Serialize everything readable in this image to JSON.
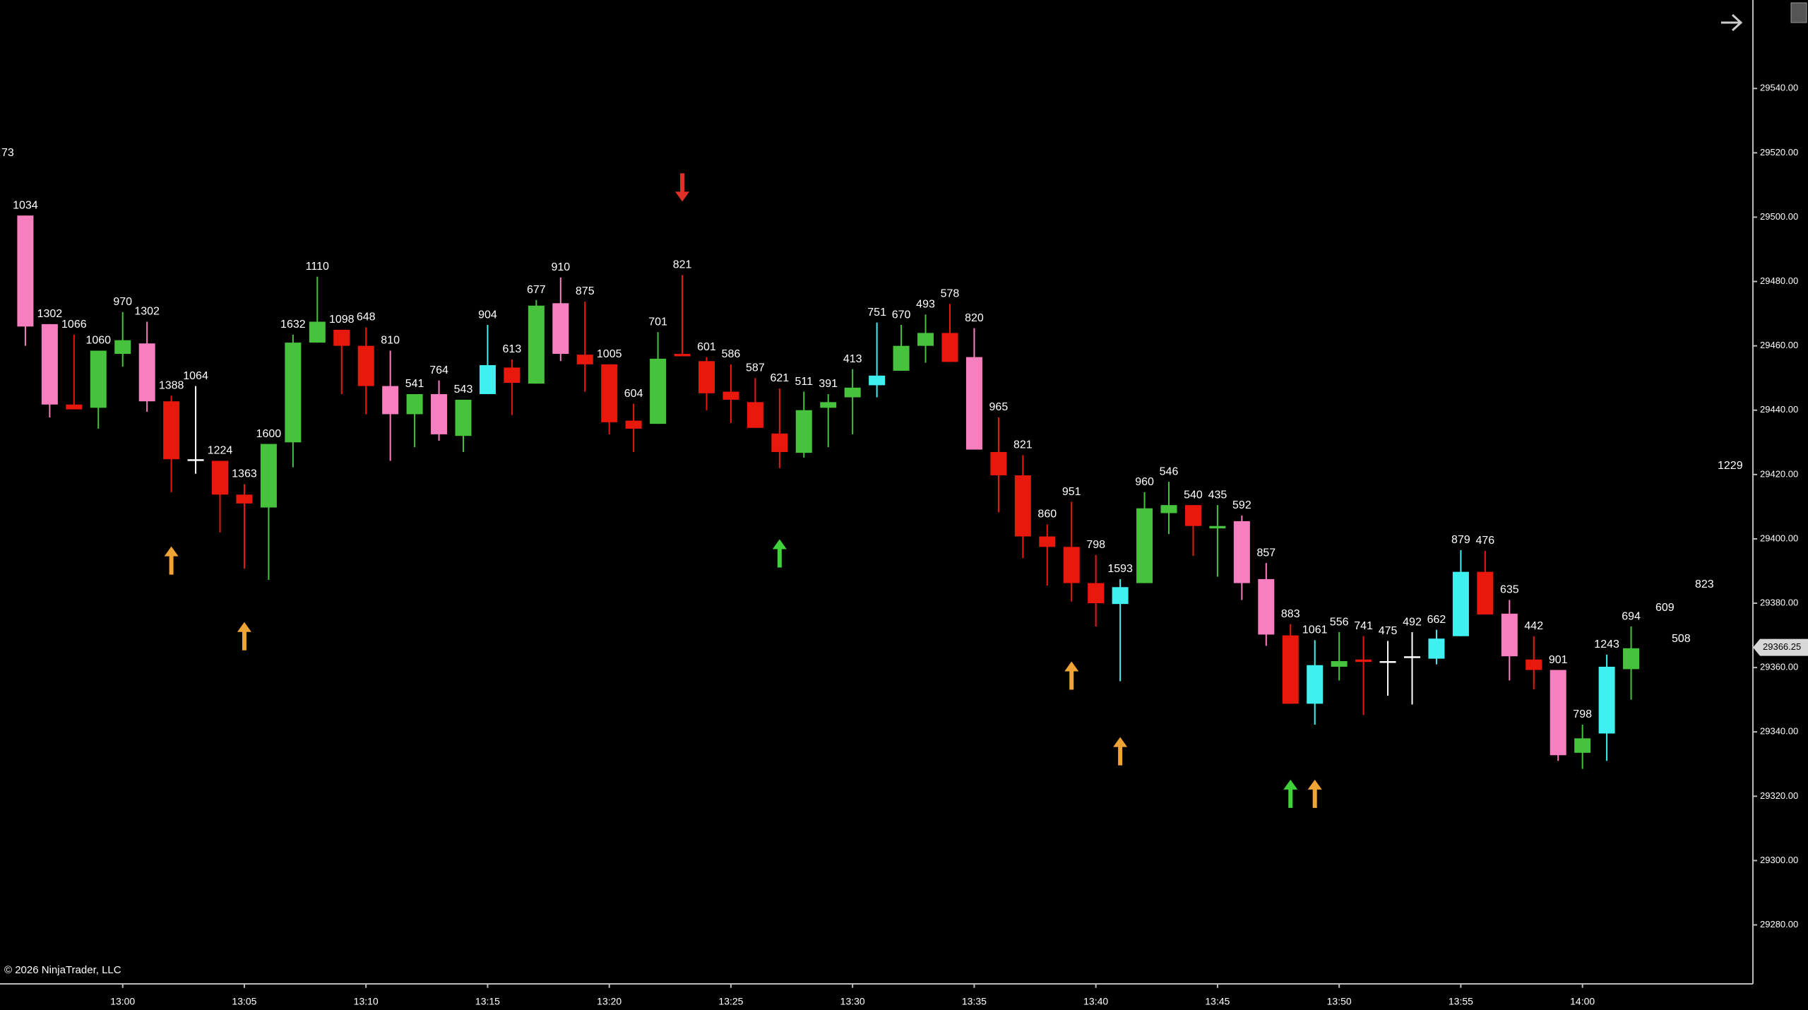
{
  "chart_data": {
    "type": "candlestick",
    "x": [
      "12:56",
      "12:57",
      "12:58",
      "12:59",
      "13:00",
      "13:01",
      "13:02",
      "13:03",
      "13:04",
      "13:05",
      "13:06",
      "13:07",
      "13:08",
      "13:09",
      "13:10",
      "13:11",
      "13:12",
      "13:13",
      "13:14",
      "13:15",
      "13:16",
      "13:17",
      "13:18",
      "13:19",
      "13:20",
      "13:21",
      "13:22",
      "13:23",
      "13:24",
      "13:25",
      "13:26",
      "13:27",
      "13:28",
      "13:29",
      "13:30",
      "13:31",
      "13:32",
      "13:33",
      "13:34",
      "13:35",
      "13:36",
      "13:37",
      "13:38",
      "13:39",
      "13:40",
      "13:41",
      "13:42",
      "13:43",
      "13:44",
      "13:45",
      "13:46",
      "13:47",
      "13:48",
      "13:49",
      "13:50",
      "13:51",
      "13:52",
      "13:53",
      "13:54",
      "13:55",
      "13:56",
      "13:57",
      "13:58",
      "13:59",
      "14:00",
      "14:01",
      "14:02"
    ],
    "open": [
      29500.5,
      29466.75,
      29441.75,
      29440.75,
      29457.5,
      29460.75,
      29442.75,
      29424.75,
      29424.25,
      29413.75,
      29409.75,
      29430,
      29461,
      29465,
      29460,
      29447.5,
      29438.75,
      29445,
      29432,
      29445,
      29453.25,
      29448.25,
      29473.25,
      29457.25,
      29454.25,
      29436.75,
      29435.75,
      29457.5,
      29455.25,
      29445.75,
      29442.5,
      29432.75,
      29426.75,
      29440.75,
      29444,
      29447.75,
      29452.25,
      29460,
      29464,
      29456.5,
      29427,
      29419.75,
      29400.75,
      29397.5,
      29386.25,
      29379.75,
      29386.25,
      29408,
      29410.5,
      29403.25,
      29405.5,
      29387.5,
      29370,
      29348.75,
      29360.25,
      29362.5,
      29362,
      29363.5,
      29362.75,
      29369.75,
      29389.75,
      29376.75,
      29362.5,
      29359.25,
      29333.5,
      29339.5,
      29359.5
    ],
    "high": [
      29500.5,
      29466.75,
      29463.5,
      29458.5,
      29470.5,
      29467.5,
      29444.5,
      29447.5,
      29424.25,
      29417,
      29429.5,
      29463.5,
      29481.5,
      29465,
      29465.75,
      29458.5,
      29445,
      29449.25,
      29443.25,
      29466.5,
      29455.75,
      29474.25,
      29481.25,
      29473.75,
      29454.25,
      29442,
      29464.25,
      29482,
      29456.5,
      29454.25,
      29450,
      29446.75,
      29445.75,
      29445,
      29452.75,
      29467.25,
      29466.5,
      29469.75,
      29473,
      29465.5,
      29437.75,
      29426,
      29404.5,
      29411.5,
      29395,
      29387.5,
      29414.5,
      29417.75,
      29410.5,
      29410.5,
      29407.25,
      29392.5,
      29373.5,
      29368.5,
      29371,
      29369.75,
      29368.25,
      29371,
      29371.75,
      29396.5,
      29396.25,
      29381,
      29369.75,
      29359.25,
      29342.25,
      29364,
      29372.75
    ],
    "low": [
      29460,
      29437.75,
      29440.25,
      29434.25,
      29453.5,
      29439.5,
      29414.5,
      29420.25,
      29402,
      29390.75,
      29387.25,
      29422.25,
      29461,
      29445,
      29438.75,
      29424.25,
      29428.5,
      29430.5,
      29427,
      29445,
      29438.5,
      29448.25,
      29455.25,
      29445.75,
      29432.5,
      29427,
      29435.75,
      29456.75,
      29440,
      29436,
      29434.5,
      29422,
      29425.25,
      29428.5,
      29432.5,
      29444,
      29452.25,
      29454.75,
      29455,
      29427.75,
      29408.25,
      29394,
      29385.5,
      29380.5,
      29372.75,
      29355.75,
      29386.25,
      29401.5,
      29394.75,
      29388.25,
      29381,
      29366.75,
      29348.75,
      29342.25,
      29356,
      29345.25,
      29351.25,
      29348.5,
      29361,
      29369.75,
      29376.5,
      29356,
      29353.25,
      29331,
      29328.5,
      29331,
      29350
    ],
    "close": [
      29466,
      29441.75,
      29440.25,
      29458.5,
      29461.75,
      29442.75,
      29424.75,
      29424.75,
      29413.75,
      29411,
      29429.5,
      29461,
      29467.5,
      29460,
      29447.5,
      29438.75,
      29445,
      29432.5,
      29443.25,
      29454,
      29448.5,
      29472.5,
      29457.5,
      29454.25,
      29436.25,
      29434.25,
      29456,
      29456.75,
      29445.25,
      29443.25,
      29434.5,
      29427,
      29440,
      29442.5,
      29447,
      29450.75,
      29460,
      29464,
      29455,
      29427.75,
      29419.75,
      29400.75,
      29397.5,
      29386.25,
      29380,
      29385,
      29409.5,
      29410.5,
      29404,
      29404,
      29386.25,
      29370.25,
      29348.75,
      29360.75,
      29362,
      29361.75,
      29362,
      29363.5,
      29369,
      29389.75,
      29376.5,
      29363.5,
      29359.25,
      29332.75,
      29338,
      29360.25,
      29366
    ],
    "volumes": [
      1034,
      1302,
      1066,
      1060,
      970,
      1302,
      1388,
      1064,
      1224,
      1363,
      1600,
      1632,
      1110,
      1098,
      648,
      810,
      541,
      764,
      543,
      904,
      613,
      677,
      910,
      875,
      1005,
      604,
      701,
      821,
      601,
      586,
      587,
      621,
      511,
      391,
      413,
      751,
      670,
      493,
      578,
      820,
      965,
      821,
      860,
      951,
      798,
      1593,
      960,
      546,
      540,
      435,
      592,
      857,
      883,
      1061,
      556,
      741,
      475,
      492,
      662,
      879,
      476,
      635,
      442,
      901,
      798,
      1243,
      694
    ],
    "colors": [
      "#f77fbf",
      "#f77fbf",
      "#e8190c",
      "#46c23c",
      "#46c23c",
      "#f77fbf",
      "#e8190c",
      "#ffffff",
      "#e8190c",
      "#e8190c",
      "#46c23c",
      "#46c23c",
      "#46c23c",
      "#e8190c",
      "#e8190c",
      "#f77fbf",
      "#46c23c",
      "#f77fbf",
      "#46c23c",
      "#3ff0f0",
      "#e8190c",
      "#46c23c",
      "#f77fbf",
      "#e8190c",
      "#e8190c",
      "#e8190c",
      "#46c23c",
      "#e8190c",
      "#e8190c",
      "#e8190c",
      "#e8190c",
      "#e8190c",
      "#46c23c",
      "#46c23c",
      "#46c23c",
      "#3ff0f0",
      "#46c23c",
      "#46c23c",
      "#e8190c",
      "#f77fbf",
      "#e8190c",
      "#e8190c",
      "#e8190c",
      "#e8190c",
      "#e8190c",
      "#3ff0f0",
      "#46c23c",
      "#46c23c",
      "#e8190c",
      "#46c23c",
      "#f77fbf",
      "#f77fbf",
      "#e8190c",
      "#3ff0f0",
      "#46c23c",
      "#e8190c",
      "#ffffff",
      "#ffffff",
      "#3ff0f0",
      "#3ff0f0",
      "#e8190c",
      "#f77fbf",
      "#e8190c",
      "#f77fbf",
      "#46c23c",
      "#3ff0f0",
      "#46c23c"
    ],
    "signals": [
      {
        "x": "13:02",
        "price": 29393.25,
        "color": "#f0a435",
        "direction": "up"
      },
      {
        "x": "13:05",
        "price": 29369.75,
        "color": "#f0a435",
        "direction": "up"
      },
      {
        "x": "13:23",
        "price": 29509.25,
        "color": "#e0302a",
        "direction": "down"
      },
      {
        "x": "13:27",
        "price": 29395.5,
        "color": "#3fd23a",
        "direction": "up"
      },
      {
        "x": "13:39",
        "price": 29357.5,
        "color": "#f0a435",
        "direction": "up"
      },
      {
        "x": "13:41",
        "price": 29334,
        "color": "#f0a435",
        "direction": "up"
      },
      {
        "x": "13:48",
        "price": 29320.75,
        "color": "#3fd23a",
        "direction": "up"
      },
      {
        "x": "13:49",
        "price": 29320.75,
        "color": "#f0a435",
        "direction": "up"
      }
    ],
    "annotations": [
      73,
      1229,
      823,
      609,
      508
    ],
    "last_price": 29366.25,
    "ylim": [
      29261.75,
      29567.5
    ],
    "yticks": [
      {
        "value": 29280,
        "label": "29280.00"
      },
      {
        "value": 29300,
        "label": "29300.00"
      },
      {
        "value": 29320,
        "label": "29320.00"
      },
      {
        "value": 29340,
        "label": "29340.00"
      },
      {
        "value": 29360,
        "label": "29360.00"
      },
      {
        "value": 29380,
        "label": "29380.00"
      },
      {
        "value": 29400,
        "label": "29400.00"
      },
      {
        "value": 29420,
        "label": "29420.00"
      },
      {
        "value": 29440,
        "label": "29440.00"
      },
      {
        "value": 29460,
        "label": "29460.00"
      },
      {
        "value": 29480,
        "label": "29480.00"
      },
      {
        "value": 29500,
        "label": "29500.00"
      },
      {
        "value": 29520,
        "label": "29520.00"
      },
      {
        "value": 29540,
        "label": "29540.00"
      }
    ],
    "xticks": [
      "13:00",
      "13:05",
      "13:10",
      "13:15",
      "13:20",
      "13:25",
      "13:30",
      "13:35",
      "13:40",
      "13:45",
      "13:50",
      "13:55",
      "14:00"
    ],
    "copyright": "© 2026 NinjaTrader, LLC"
  }
}
